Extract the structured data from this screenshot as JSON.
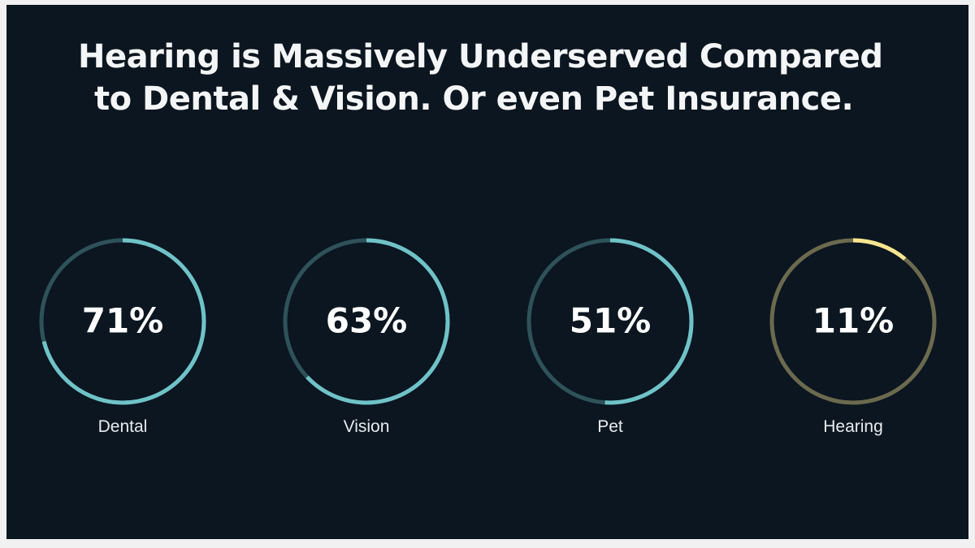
{
  "title_line1": "Hearing is Massively Underserved Compared",
  "title_line2": "to Dental & Vision. Or even Pet Insurance.",
  "colors": {
    "background": "#0b1620",
    "ring_fill": "#6fc3c8",
    "ring_track": "#2f525a",
    "highlight_fill": "#f7e68f",
    "highlight_track": "#6c6a4e"
  },
  "chart_data": {
    "type": "pie",
    "style": "donut-ring",
    "unit": "%",
    "items": [
      {
        "label": "Dental",
        "value": 71,
        "display": "71%",
        "highlight": false
      },
      {
        "label": "Vision",
        "value": 63,
        "display": "63%",
        "highlight": false
      },
      {
        "label": "Pet",
        "value": 51,
        "display": "51%",
        "highlight": false
      },
      {
        "label": "Hearing",
        "value": 11,
        "display": "11%",
        "highlight": true
      }
    ]
  }
}
